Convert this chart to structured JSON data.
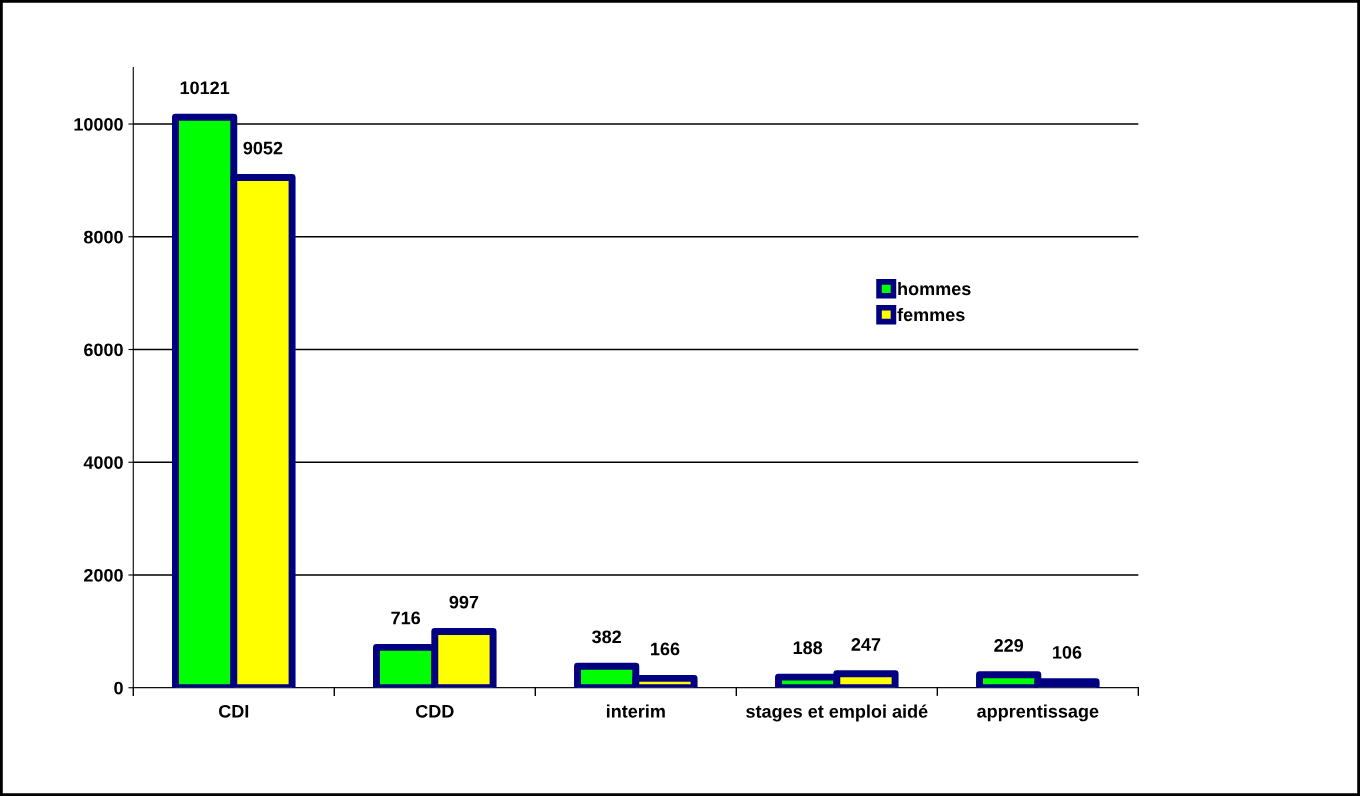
{
  "chart_data": {
    "type": "bar",
    "categories": [
      "CDI",
      "CDD",
      "interim",
      "stages et emploi aidé",
      "apprentissage"
    ],
    "series": [
      {
        "name": "hommes",
        "color": "#00ff00",
        "values": [
          10121,
          716,
          382,
          188,
          229
        ]
      },
      {
        "name": "femmes",
        "color": "#ffff00",
        "values": [
          9052,
          997,
          166,
          247,
          106
        ]
      }
    ],
    "ylim": [
      0,
      11000
    ],
    "yticks": [
      0,
      2000,
      4000,
      6000,
      8000,
      10000
    ],
    "grid": "y",
    "legend": "right",
    "data_labels": true
  }
}
